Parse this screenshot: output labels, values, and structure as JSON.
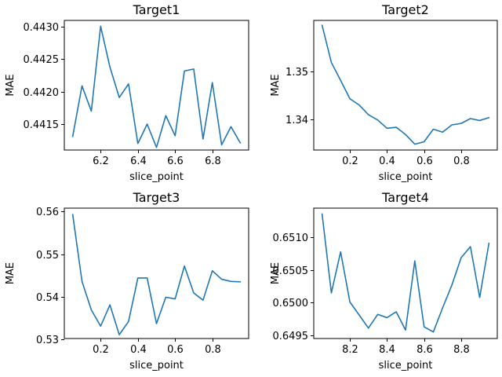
{
  "chart_data": [
    {
      "type": "line",
      "title": "Target1",
      "xlabel": "slice_point",
      "ylabel": "MAE",
      "xlim": [
        6.005,
        6.995
      ],
      "ylim": [
        0.4411,
        0.4431
      ],
      "xticks": [
        6.2,
        6.4,
        6.6,
        6.8
      ],
      "xtick_labels": [
        "6.2",
        "6.4",
        "6.6",
        "6.8"
      ],
      "yticks": [
        0.4415,
        0.442,
        0.4425,
        0.443
      ],
      "ytick_labels": [
        "0.4415",
        "0.4420",
        "0.4425",
        "0.4430"
      ],
      "grid": false,
      "series": [
        {
          "x": [
            6.05,
            6.1,
            6.15,
            6.2,
            6.25,
            6.3,
            6.35,
            6.4,
            6.45,
            6.5,
            6.55,
            6.6,
            6.65,
            6.7,
            6.75,
            6.8,
            6.85,
            6.9,
            6.95
          ],
          "values": [
            0.44131,
            0.44209,
            0.4417,
            0.44301,
            0.44238,
            0.44191,
            0.44212,
            0.4412,
            0.4415,
            0.44114,
            0.44163,
            0.44132,
            0.44232,
            0.44235,
            0.44127,
            0.44214,
            0.44118,
            0.44146,
            0.44121
          ]
        }
      ]
    },
    {
      "type": "line",
      "title": "Target2",
      "xlabel": "slice_point",
      "ylabel": "MAE",
      "xlim": [
        0.005,
        0.995
      ],
      "ylim": [
        1.3337,
        1.3605
      ],
      "xticks": [
        0.2,
        0.4,
        0.6,
        0.8
      ],
      "xtick_labels": [
        "0.2",
        "0.4",
        "0.6",
        "0.8"
      ],
      "yticks": [
        1.34,
        1.35
      ],
      "ytick_labels": [
        "1.34",
        "1.35"
      ],
      "grid": false,
      "series": [
        {
          "x": [
            0.05,
            0.1,
            0.15,
            0.2,
            0.25,
            0.3,
            0.35,
            0.4,
            0.45,
            0.5,
            0.55,
            0.6,
            0.65,
            0.7,
            0.75,
            0.8,
            0.85,
            0.9,
            0.95
          ],
          "values": [
            1.3595,
            1.3518,
            1.3481,
            1.3443,
            1.343,
            1.341,
            1.3399,
            1.3382,
            1.3384,
            1.3369,
            1.3349,
            1.3354,
            1.338,
            1.3374,
            1.3389,
            1.3392,
            1.3402,
            1.3398,
            1.3404
          ]
        }
      ]
    },
    {
      "type": "line",
      "title": "Target3",
      "xlabel": "slice_point",
      "ylabel": "MAE",
      "xlim": [
        0.005,
        0.995
      ],
      "ylim": [
        0.5302,
        0.5608
      ],
      "xticks": [
        0.2,
        0.4,
        0.6,
        0.8
      ],
      "xtick_labels": [
        "0.2",
        "0.4",
        "0.6",
        "0.8"
      ],
      "yticks": [
        0.53,
        0.54,
        0.55,
        0.56
      ],
      "ytick_labels": [
        "0.53",
        "0.54",
        "0.55",
        "0.56"
      ],
      "grid": false,
      "series": [
        {
          "x": [
            0.05,
            0.1,
            0.15,
            0.2,
            0.25,
            0.3,
            0.35,
            0.4,
            0.45,
            0.5,
            0.55,
            0.6,
            0.65,
            0.7,
            0.75,
            0.8,
            0.85,
            0.9,
            0.95
          ],
          "values": [
            0.5593,
            0.5436,
            0.5369,
            0.5331,
            0.5381,
            0.5311,
            0.5342,
            0.5444,
            0.5444,
            0.5337,
            0.5399,
            0.5395,
            0.5472,
            0.5409,
            0.5392,
            0.5461,
            0.5441,
            0.5436,
            0.5435
          ]
        }
      ]
    },
    {
      "type": "line",
      "title": "Target4",
      "xlabel": "slice_point",
      "ylabel": "MAE",
      "xlim": [
        8.005,
        8.995
      ],
      "ylim": [
        0.64945,
        0.65145
      ],
      "xticks": [
        8.2,
        8.4,
        8.6,
        8.8
      ],
      "xtick_labels": [
        "8.2",
        "8.4",
        "8.6",
        "8.8"
      ],
      "yticks": [
        0.6495,
        0.65,
        0.6505,
        0.651
      ],
      "ytick_labels": [
        "0.6495",
        "0.6500",
        "0.6505",
        "0.6510"
      ],
      "grid": false,
      "series": [
        {
          "x": [
            8.05,
            8.1,
            8.15,
            8.2,
            8.25,
            8.3,
            8.35,
            8.4,
            8.45,
            8.5,
            8.55,
            8.6,
            8.65,
            8.7,
            8.75,
            8.8,
            8.85,
            8.9,
            8.95
          ],
          "values": [
            0.65136,
            0.65015,
            0.65078,
            0.65001,
            0.64981,
            0.64961,
            0.64982,
            0.64977,
            0.64986,
            0.64958,
            0.65064,
            0.64963,
            0.64955,
            0.64992,
            0.65027,
            0.65069,
            0.65086,
            0.65008,
            0.65091
          ]
        }
      ]
    }
  ]
}
